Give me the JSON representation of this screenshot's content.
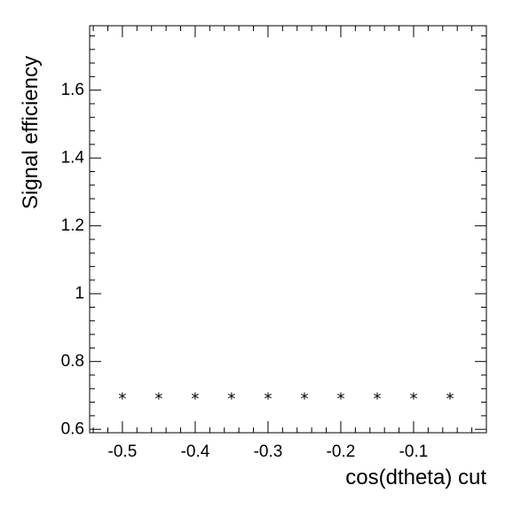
{
  "chart_data": {
    "type": "scatter",
    "xlabel": "cos(dtheta) cut",
    "ylabel": "Signal efficiency",
    "xlim": [
      -0.545,
      0.0
    ],
    "ylim": [
      0.59,
      1.79
    ],
    "x_major_ticks": [
      -0.5,
      -0.4,
      -0.3,
      -0.2,
      -0.1
    ],
    "x_tick_labels": [
      "-0.5",
      "-0.4",
      "-0.3",
      "-0.2",
      "-0.1"
    ],
    "y_major_ticks": [
      0.6,
      0.8,
      1.0,
      1.2,
      1.4,
      1.6
    ],
    "y_tick_labels": [
      "0.6",
      "0.8",
      "1",
      "1.2",
      "1.4",
      "1.6"
    ],
    "marker": "*",
    "grid": false,
    "series": [
      {
        "x": [
          -0.5,
          -0.45,
          -0.4,
          -0.35,
          -0.3,
          -0.25,
          -0.2,
          -0.15,
          -0.1,
          -0.05
        ],
        "y": [
          0.69,
          0.69,
          0.69,
          0.69,
          0.69,
          0.69,
          0.69,
          0.69,
          0.69,
          0.69
        ]
      }
    ]
  }
}
